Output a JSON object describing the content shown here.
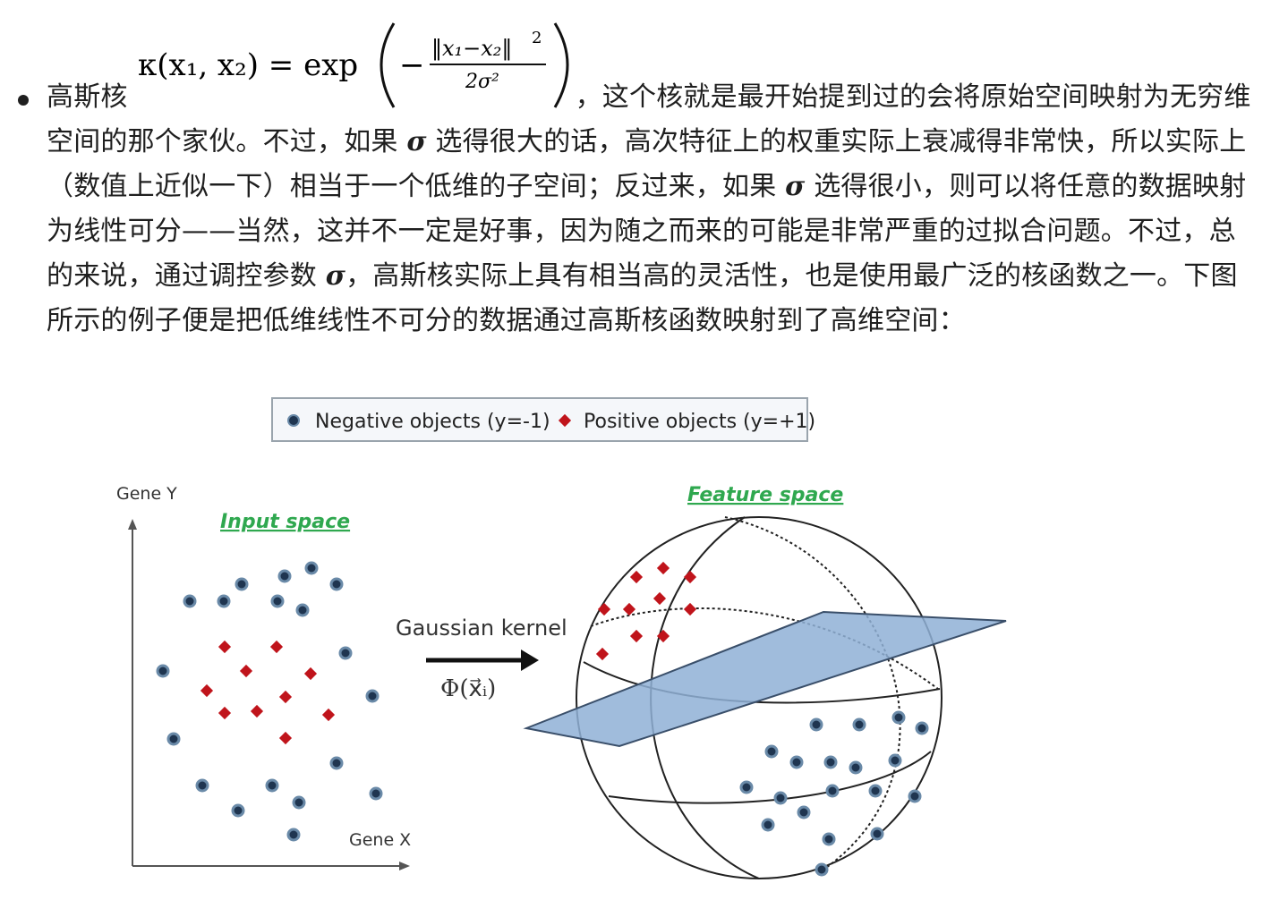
{
  "item": {
    "term": "高斯核",
    "formula": {
      "lhs": "κ(x₁, x₂) = exp",
      "numerator": "‖x₁−x₂‖",
      "exponent": "2",
      "denominator": "2σ²",
      "minus": "−"
    },
    "line1_tail": "，这个核就是最开始提到过的会将原始空间映射为无",
    "body": [
      {
        "text": "穷维空间的那个家伙。不过，如果 "
      },
      {
        "sigma": "σ"
      },
      {
        "text": " 选得很大的话，高次特征上的权重实际上衰减得非常快，所以实际上（数值上近似一下）相当于一个低维的子空间；反过来，如果 "
      },
      {
        "sigma": "σ"
      },
      {
        "text": " 选得很小，则可以将任意的数据映射为线性可分——当然，这并不一定是好事，因为随之而来的可能是非常严重的过拟合问题。不过，总的来说，通过调控参数 "
      },
      {
        "sigma": "σ"
      },
      {
        "text": "，高斯核实际上具有相当高的灵活性，也是使用最广泛的核函数之一。下图所示的例子便是把低维线性不可分的数据通过高斯核函数映射到了高维空间："
      }
    ]
  },
  "figure": {
    "legend": {
      "negative": "Negative objects (y=-1)",
      "positive": "Positive objects (y=+1)"
    },
    "input_space_title": "Input space",
    "feature_space_title": "Feature space",
    "axis_y": "Gene Y",
    "axis_x": "Gene X",
    "arrow_label": "Gaussian kernel",
    "map_label": "Φ(x⃗ᵢ)",
    "colors": {
      "negative_fill": "#1f3550",
      "negative_stroke": "#6a8aa8",
      "positive": "#c0141b",
      "title_green": "#2fa84f",
      "plane": "#8fb0d6"
    }
  }
}
